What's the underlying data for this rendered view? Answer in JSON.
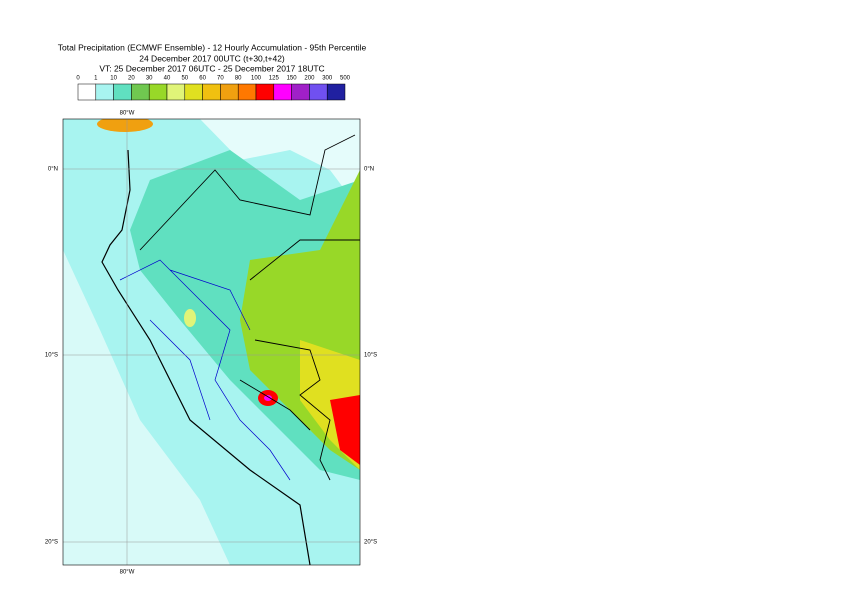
{
  "header": {
    "title_lines": [
      "Total Precipitation (ECMWF Ensemble) - 12 Hourly Accumulation - 95th Percentile",
      "24 December 2017 00UTC (t+30,t+42)",
      "VT: 25 December 2017 06UTC - 25 December 2017 18UTC"
    ]
  },
  "legend": {
    "labels": [
      "0",
      "1",
      "10",
      "20",
      "30",
      "40",
      "50",
      "60",
      "70",
      "80",
      "100",
      "125",
      "150",
      "200",
      "300",
      "500"
    ],
    "colors": [
      "#ffffff",
      "#a8f4f0",
      "#60e0c0",
      "#70c850",
      "#98d828",
      "#e0f478",
      "#e0e020",
      "#f0c010",
      "#f0a010",
      "#ff7800",
      "#ff0000",
      "#ff00ff",
      "#a020c8",
      "#7050f0",
      "#2020a0",
      "#101050"
    ]
  },
  "map": {
    "lon_labels": {
      "top": "80°W",
      "bottom": "80°W"
    },
    "lat_labels": {
      "left": [
        "0°N",
        "10°S",
        "20°S"
      ],
      "right": [
        "0°N",
        "10°S",
        "20°S"
      ]
    }
  }
}
